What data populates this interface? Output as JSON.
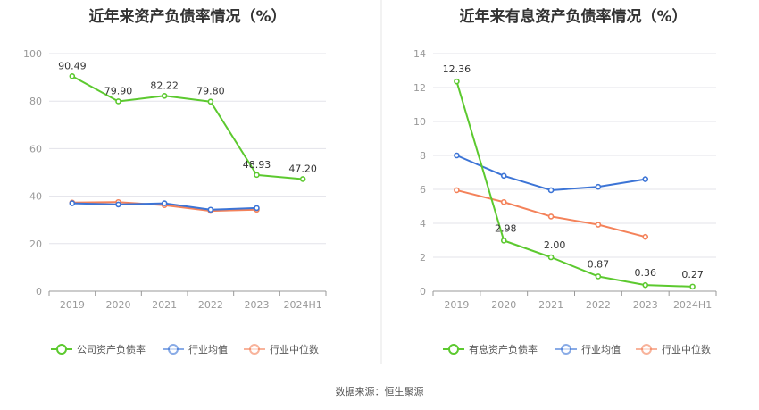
{
  "colors": {
    "company": "#5cc92f",
    "industry_avg": "#3c74d6",
    "industry_median": "#f4825a",
    "grid": "#e3e3ea",
    "axis": "#999999",
    "divider": "#e5e5e5"
  },
  "source_text": "数据来源：恒生聚源",
  "chart_data": [
    {
      "type": "line",
      "title": "近年来资产负债率情况（%）",
      "categories": [
        "2019",
        "2020",
        "2021",
        "2022",
        "2023",
        "2024H1"
      ],
      "ylim": [
        0,
        100
      ],
      "yticks": [
        0,
        20,
        40,
        60,
        80,
        100
      ],
      "ytick_labels": [
        "0",
        "20",
        "40",
        "60",
        "80",
        "100"
      ],
      "grid": true,
      "legend": "bottom",
      "series": [
        {
          "name": "公司资产负债率",
          "color_key": "company",
          "values": [
            90.49,
            79.9,
            82.22,
            79.8,
            48.93,
            47.2
          ],
          "labels": [
            "90.49",
            "79.90",
            "82.22",
            "79.80",
            "48.93",
            "47.20"
          ]
        },
        {
          "name": "行业均值",
          "color_key": "industry_avg",
          "values": [
            37.0,
            36.5,
            37.0,
            34.3,
            35.0,
            null
          ]
        },
        {
          "name": "行业中位数",
          "color_key": "industry_median",
          "values": [
            37.3,
            37.5,
            36.2,
            33.8,
            34.3,
            null
          ]
        }
      ]
    },
    {
      "type": "line",
      "title": "近年来有息资产负债率情况（%）",
      "categories": [
        "2019",
        "2020",
        "2021",
        "2022",
        "2023",
        "2024H1"
      ],
      "ylim": [
        0,
        14
      ],
      "yticks": [
        0,
        2,
        4,
        6,
        8,
        10,
        12,
        14
      ],
      "ytick_labels": [
        "0",
        "2",
        "4",
        "6",
        "8",
        "10",
        "12",
        "14"
      ],
      "grid": true,
      "legend": "bottom",
      "series": [
        {
          "name": "有息资产负债率",
          "color_key": "company",
          "values": [
            12.36,
            2.98,
            2.0,
            0.87,
            0.36,
            0.27
          ],
          "labels": [
            "12.36",
            "2.98",
            "2.00",
            "0.87",
            "0.36",
            "0.27"
          ]
        },
        {
          "name": "行业均值",
          "color_key": "industry_avg",
          "values": [
            8.0,
            6.8,
            5.95,
            6.15,
            6.6,
            null
          ]
        },
        {
          "name": "行业中位数",
          "color_key": "industry_median",
          "values": [
            5.95,
            5.25,
            4.4,
            3.92,
            3.2,
            null
          ]
        }
      ]
    }
  ]
}
